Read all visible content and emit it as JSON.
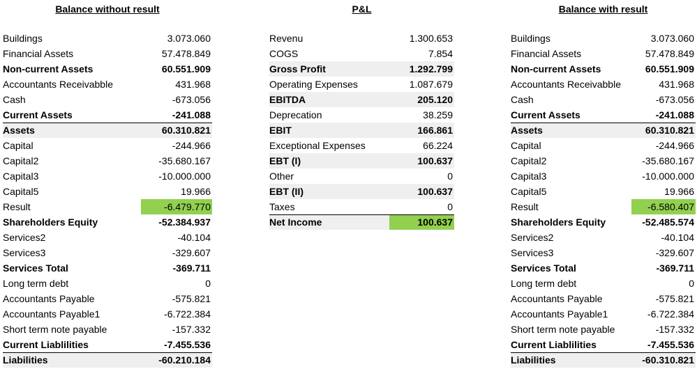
{
  "colors": {
    "highlight": "#92d050",
    "shade": "#efefef"
  },
  "left": {
    "title": "Balance without result",
    "rows": [
      {
        "label": "Buildings",
        "value": "3.073.060"
      },
      {
        "label": "Financial Assets",
        "value": "57.478.849"
      },
      {
        "label": "Non-current Assets",
        "value": "60.551.909"
      },
      {
        "label": "Accountants Receivabble",
        "value": "431.968"
      },
      {
        "label": "Cash",
        "value": "-673.056"
      },
      {
        "label": "Current Assets",
        "value": "-241.088"
      },
      {
        "label": "Assets",
        "value": "60.310.821"
      },
      {
        "label": "Capital",
        "value": "-244.966"
      },
      {
        "label": "Capital2",
        "value": "-35.680.167"
      },
      {
        "label": "Capital3",
        "value": "-10.000.000"
      },
      {
        "label": "Capital5",
        "value": "19.966"
      },
      {
        "label": "Result",
        "value": "-6.479.770"
      },
      {
        "label": "Shareholders Equity",
        "value": "-52.384.937"
      },
      {
        "label": "Services2",
        "value": "-40.104"
      },
      {
        "label": "Services3",
        "value": "-329.607"
      },
      {
        "label": "Services Total",
        "value": "-369.711"
      },
      {
        "label": "Long term debt",
        "value": "0"
      },
      {
        "label": "Accountants Payable",
        "value": "-575.821"
      },
      {
        "label": "Accountants Payable1",
        "value": "-6.722.384"
      },
      {
        "label": "Short term note payable",
        "value": "-157.332"
      },
      {
        "label": "Current Liablilities",
        "value": "-7.455.536"
      },
      {
        "label": "Liabilities",
        "value": "-60.210.184"
      }
    ]
  },
  "middle": {
    "title": "P&L",
    "rows": [
      {
        "label": "Revenu",
        "value": "1.300.653"
      },
      {
        "label": "COGS",
        "value": "7.854"
      },
      {
        "label": "Gross Profit",
        "value": "1.292.799"
      },
      {
        "label": "Operating Expenses",
        "value": "1.087.679"
      },
      {
        "label": "EBITDA",
        "value": "205.120"
      },
      {
        "label": "Deprecation",
        "value": "38.259"
      },
      {
        "label": "EBIT",
        "value": "166.861"
      },
      {
        "label": "Exceptional Expenses",
        "value": "66.224"
      },
      {
        "label": "EBT (I)",
        "value": "100.637"
      },
      {
        "label": "Other",
        "value": "0"
      },
      {
        "label": "EBT (II)",
        "value": "100.637"
      },
      {
        "label": "Taxes",
        "value": "0"
      },
      {
        "label": "Net Income",
        "value": "100.637"
      }
    ]
  },
  "right": {
    "title": "Balance with result",
    "rows": [
      {
        "label": "Buildings",
        "value": "3.073.060"
      },
      {
        "label": "Financial Assets",
        "value": "57.478.849"
      },
      {
        "label": "Non-current Assets",
        "value": "60.551.909"
      },
      {
        "label": "Accountants Receivabble",
        "value": "431.968"
      },
      {
        "label": "Cash",
        "value": "-673.056"
      },
      {
        "label": "Current Assets",
        "value": "-241.088"
      },
      {
        "label": "Assets",
        "value": "60.310.821"
      },
      {
        "label": "Capital",
        "value": "-244.966"
      },
      {
        "label": "Capital2",
        "value": "-35.680.167"
      },
      {
        "label": "Capital3",
        "value": "-10.000.000"
      },
      {
        "label": "Capital5",
        "value": "19.966"
      },
      {
        "label": "Result",
        "value": "-6.580.407"
      },
      {
        "label": "Shareholders Equity",
        "value": "-52.485.574"
      },
      {
        "label": "Services2",
        "value": "-40.104"
      },
      {
        "label": "Services3",
        "value": "-329.607"
      },
      {
        "label": "Services Total",
        "value": "-369.711"
      },
      {
        "label": "Long term debt",
        "value": "0"
      },
      {
        "label": "Accountants Payable",
        "value": "-575.821"
      },
      {
        "label": "Accountants Payable1",
        "value": "-6.722.384"
      },
      {
        "label": "Short term note payable",
        "value": "-157.332"
      },
      {
        "label": "Current Liablilities",
        "value": "-7.455.536"
      },
      {
        "label": "Liabilities",
        "value": "-60.310.821"
      }
    ]
  }
}
